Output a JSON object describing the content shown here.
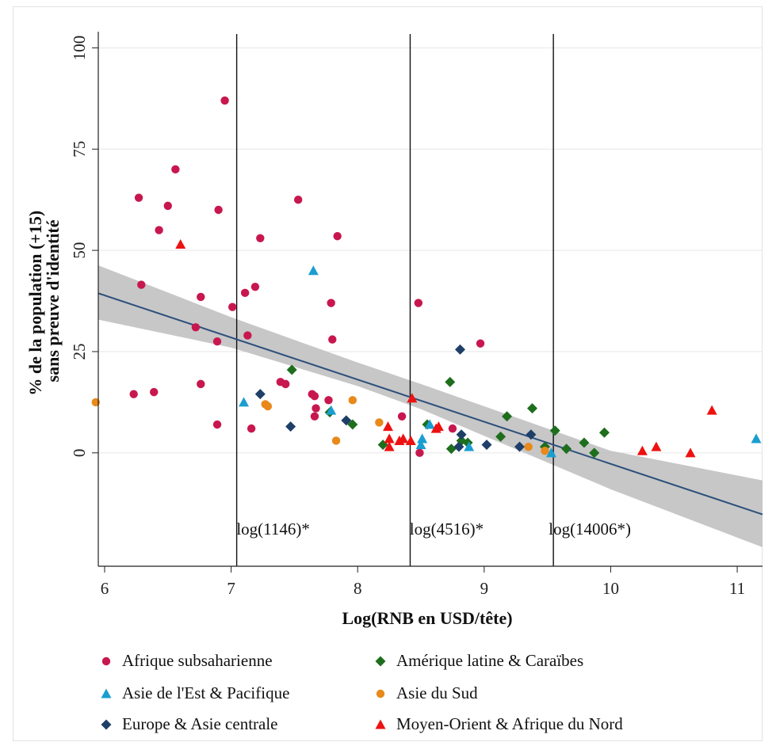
{
  "chart_data": {
    "type": "scatter",
    "xlabel": "Log(RNB en USD/tête)",
    "ylabel": [
      "% de la population (+15)",
      "sans preuve d'identité"
    ],
    "xlim": [
      5.95,
      11.2
    ],
    "ylim": [
      -28,
      104
    ],
    "xticks": [
      6,
      7,
      8,
      9,
      10,
      11
    ],
    "yticks": [
      0,
      25,
      50,
      75,
      100
    ],
    "grid": "horizontal",
    "legend_position": "bottom",
    "colors": {
      "Afrique subsaharienne": "#c8174f",
      "Amérique latine & Caraïbes": "#1d6e1d",
      "Asie de l'Est & Pacifique": "#1a9ed0",
      "Asie du Sud": "#e8891a",
      "Europe & Asie centrale": "#1e3f68",
      "Moyen-Orient & Afrique du Nord": "#ee1111"
    },
    "vertical_lines": [
      {
        "x": 7.044,
        "label": "log(1146)*"
      },
      {
        "x": 8.415,
        "label": "log(4516)*"
      },
      {
        "x": 9.547,
        "label": "log(14006*)"
      }
    ],
    "fit": {
      "x": [
        5.95,
        11.2
      ],
      "y": [
        39.4,
        -15.2
      ]
    },
    "ci_band": {
      "x": [
        5.95,
        7.0,
        8.0,
        8.5,
        9.0,
        10.0,
        11.2
      ],
      "upper": [
        46.3,
        33.5,
        22.3,
        17.0,
        11.5,
        0.5,
        -6.8
      ],
      "lower": [
        32.9,
        26.0,
        16.5,
        10.8,
        4.2,
        -9.0,
        -23.3
      ]
    },
    "legend": [
      {
        "label": "Afrique subsaharienne",
        "marker": "circle"
      },
      {
        "label": "Amérique latine & Caraïbes",
        "marker": "diamond"
      },
      {
        "label": "Asie de l'Est & Pacifique",
        "marker": "triangle"
      },
      {
        "label": "Asie du Sud",
        "marker": "circle"
      },
      {
        "label": "Europe & Asie centrale",
        "marker": "diamond"
      },
      {
        "label": "Moyen-Orient & Afrique du Nord",
        "marker": "triangle"
      }
    ],
    "series": [
      {
        "name": "Afrique subsaharienne",
        "marker": "circle",
        "points": [
          [
            6.95,
            87
          ],
          [
            6.56,
            70
          ],
          [
            6.27,
            63
          ],
          [
            6.5,
            61
          ],
          [
            6.9,
            60
          ],
          [
            7.53,
            62.5
          ],
          [
            6.43,
            55
          ],
          [
            7.23,
            53
          ],
          [
            7.84,
            53.5
          ],
          [
            6.29,
            41.5
          ],
          [
            7.19,
            41
          ],
          [
            7.11,
            39.5
          ],
          [
            6.76,
            38.5
          ],
          [
            7.79,
            37
          ],
          [
            8.48,
            37
          ],
          [
            7.01,
            36
          ],
          [
            6.72,
            31
          ],
          [
            7.13,
            29
          ],
          [
            6.89,
            27.5
          ],
          [
            7.8,
            28
          ],
          [
            8.97,
            27
          ],
          [
            6.23,
            14.5
          ],
          [
            6.39,
            15
          ],
          [
            6.76,
            17
          ],
          [
            7.39,
            17.5
          ],
          [
            7.43,
            17
          ],
          [
            7.64,
            14.5
          ],
          [
            7.66,
            14
          ],
          [
            7.77,
            13
          ],
          [
            7.67,
            11
          ],
          [
            7.66,
            9
          ],
          [
            8.35,
            9
          ],
          [
            6.89,
            7
          ],
          [
            7.16,
            6
          ],
          [
            8.75,
            6
          ],
          [
            8.49,
            0
          ]
        ]
      },
      {
        "name": "Amérique latine & Caraïbes",
        "marker": "diamond",
        "points": [
          [
            7.48,
            20.5
          ],
          [
            7.78,
            10
          ],
          [
            7.96,
            7
          ],
          [
            8.73,
            17.5
          ],
          [
            9.38,
            11
          ],
          [
            9.18,
            9
          ],
          [
            9.13,
            4
          ],
          [
            8.55,
            7
          ],
          [
            8.82,
            3
          ],
          [
            8.87,
            2.5
          ],
          [
            8.74,
            1
          ],
          [
            8.2,
            2
          ],
          [
            9.56,
            5.5
          ],
          [
            9.95,
            5
          ],
          [
            9.79,
            2.5
          ],
          [
            9.65,
            1
          ],
          [
            9.87,
            0
          ],
          [
            9.48,
            1.5
          ]
        ]
      },
      {
        "name": "Asie de l'Est & Pacifique",
        "marker": "triangle",
        "points": [
          [
            7.65,
            45
          ],
          [
            7.1,
            12.5
          ],
          [
            7.79,
            10.5
          ],
          [
            8.57,
            7
          ],
          [
            8.51,
            3.5
          ],
          [
            8.5,
            2
          ],
          [
            8.88,
            1.5
          ],
          [
            9.53,
            0
          ],
          [
            11.15,
            3.5
          ]
        ]
      },
      {
        "name": "Asie du Sud",
        "marker": "circle",
        "points": [
          [
            5.93,
            12.5
          ],
          [
            7.27,
            12
          ],
          [
            7.29,
            11.5
          ],
          [
            7.96,
            13
          ],
          [
            8.17,
            7.5
          ],
          [
            7.83,
            3
          ],
          [
            9.35,
            1.5
          ],
          [
            9.48,
            0.5
          ]
        ]
      },
      {
        "name": "Europe & Asie centrale",
        "marker": "diamond",
        "points": [
          [
            7.23,
            14.5
          ],
          [
            7.47,
            6.5
          ],
          [
            7.91,
            8
          ],
          [
            8.81,
            25.5
          ],
          [
            8.82,
            4.5
          ],
          [
            9.37,
            4.5
          ],
          [
            9.02,
            2
          ],
          [
            9.28,
            1.5
          ],
          [
            8.8,
            1.5
          ]
        ]
      },
      {
        "name": "Moyen-Orient & Afrique du Nord",
        "marker": "triangle",
        "points": [
          [
            6.6,
            51.5
          ],
          [
            8.43,
            13.5
          ],
          [
            8.24,
            6.5
          ],
          [
            8.62,
            6
          ],
          [
            8.64,
            6.5
          ],
          [
            8.25,
            3.5
          ],
          [
            8.33,
            3
          ],
          [
            8.36,
            3.5
          ],
          [
            8.42,
            3
          ],
          [
            8.25,
            1.5
          ],
          [
            10.25,
            0.5
          ],
          [
            10.36,
            1.5
          ],
          [
            10.63,
            0
          ],
          [
            10.8,
            10.5
          ]
        ]
      }
    ]
  }
}
